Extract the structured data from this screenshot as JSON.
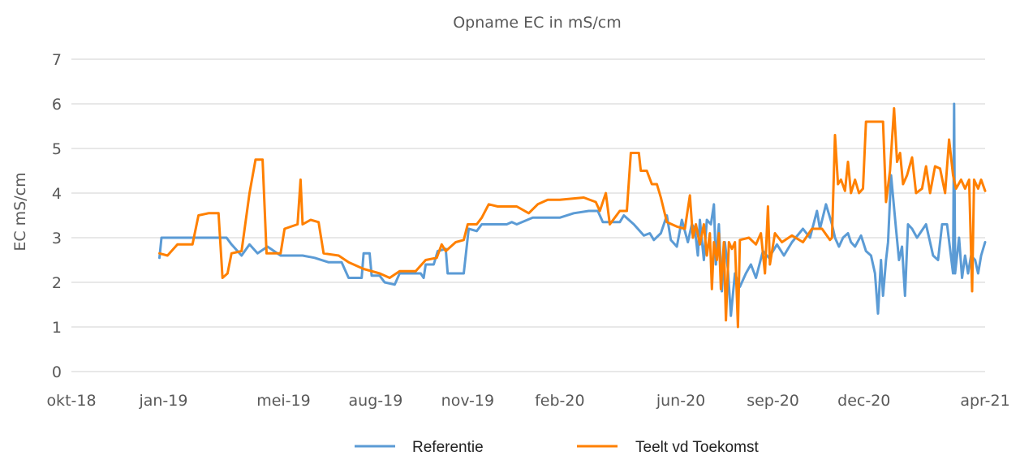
{
  "chart_data": {
    "type": "line",
    "title": "Opname EC in mS/cm",
    "xlabel": "",
    "ylabel": "EC mS/cm",
    "ylim": [
      0,
      7
    ],
    "yticks": [
      0,
      1,
      2,
      3,
      4,
      5,
      6,
      7
    ],
    "xlim": [
      "2018-10-01",
      "2021-04-01"
    ],
    "xticks": [
      {
        "date": "2018-10-01",
        "label": "okt-18"
      },
      {
        "date": "2019-01-01",
        "label": "jan-19"
      },
      {
        "date": "2019-05-01",
        "label": "mei-19"
      },
      {
        "date": "2019-08-01",
        "label": "aug-19"
      },
      {
        "date": "2019-11-01",
        "label": "nov-19"
      },
      {
        "date": "2020-02-01",
        "label": "feb-20"
      },
      {
        "date": "2020-06-01",
        "label": "jun-20"
      },
      {
        "date": "2020-09-01",
        "label": "sep-20"
      },
      {
        "date": "2020-12-01",
        "label": "dec-20"
      },
      {
        "date": "2021-04-01",
        "label": "apr-21"
      }
    ],
    "grid": "horizontal",
    "legend_position": "bottom",
    "series": [
      {
        "name": "Referentie",
        "color": "#5b9bd5",
        "points": [
          [
            "2018-12-28",
            2.55
          ],
          [
            "2018-12-30",
            3.0
          ],
          [
            "2019-02-01",
            3.0
          ],
          [
            "2019-03-05",
            3.0
          ],
          [
            "2019-03-10",
            2.85
          ],
          [
            "2019-03-20",
            2.6
          ],
          [
            "2019-03-28",
            2.85
          ],
          [
            "2019-04-05",
            2.65
          ],
          [
            "2019-04-15",
            2.8
          ],
          [
            "2019-04-28",
            2.6
          ],
          [
            "2019-05-20",
            2.6
          ],
          [
            "2019-06-01",
            2.55
          ],
          [
            "2019-06-15",
            2.45
          ],
          [
            "2019-06-28",
            2.45
          ],
          [
            "2019-07-05",
            2.1
          ],
          [
            "2019-07-18",
            2.1
          ],
          [
            "2019-07-20",
            2.65
          ],
          [
            "2019-07-26",
            2.65
          ],
          [
            "2019-07-28",
            2.15
          ],
          [
            "2019-08-05",
            2.15
          ],
          [
            "2019-08-10",
            2.0
          ],
          [
            "2019-08-20",
            1.95
          ],
          [
            "2019-08-25",
            2.2
          ],
          [
            "2019-09-15",
            2.2
          ],
          [
            "2019-09-18",
            2.1
          ],
          [
            "2019-09-20",
            2.4
          ],
          [
            "2019-09-28",
            2.4
          ],
          [
            "2019-10-02",
            2.7
          ],
          [
            "2019-10-10",
            2.75
          ],
          [
            "2019-10-12",
            2.2
          ],
          [
            "2019-10-28",
            2.2
          ],
          [
            "2019-11-02",
            3.2
          ],
          [
            "2019-11-10",
            3.15
          ],
          [
            "2019-11-15",
            3.3
          ],
          [
            "2019-12-10",
            3.3
          ],
          [
            "2019-12-15",
            3.35
          ],
          [
            "2019-12-20",
            3.3
          ],
          [
            "2020-01-05",
            3.45
          ],
          [
            "2020-02-01",
            3.45
          ],
          [
            "2020-02-15",
            3.55
          ],
          [
            "2020-03-01",
            3.6
          ],
          [
            "2020-03-10",
            3.6
          ],
          [
            "2020-03-15",
            3.35
          ],
          [
            "2020-04-01",
            3.35
          ],
          [
            "2020-04-05",
            3.5
          ],
          [
            "2020-04-15",
            3.3
          ],
          [
            "2020-04-25",
            3.05
          ],
          [
            "2020-05-01",
            3.1
          ],
          [
            "2020-05-05",
            2.95
          ],
          [
            "2020-05-12",
            3.1
          ],
          [
            "2020-05-18",
            3.5
          ],
          [
            "2020-05-22",
            2.95
          ],
          [
            "2020-05-28",
            2.8
          ],
          [
            "2020-06-02",
            3.4
          ],
          [
            "2020-06-08",
            2.9
          ],
          [
            "2020-06-12",
            3.3
          ],
          [
            "2020-06-15",
            3.2
          ],
          [
            "2020-06-18",
            2.6
          ],
          [
            "2020-06-20",
            3.4
          ],
          [
            "2020-06-24",
            2.5
          ],
          [
            "2020-06-27",
            3.4
          ],
          [
            "2020-07-01",
            3.3
          ],
          [
            "2020-07-04",
            3.75
          ],
          [
            "2020-07-06",
            2.4
          ],
          [
            "2020-07-09",
            3.3
          ],
          [
            "2020-07-12",
            1.8
          ],
          [
            "2020-07-15",
            2.9
          ],
          [
            "2020-07-18",
            2.3
          ],
          [
            "2020-07-21",
            1.25
          ],
          [
            "2020-07-25",
            2.2
          ],
          [
            "2020-07-30",
            1.9
          ],
          [
            "2020-08-05",
            2.2
          ],
          [
            "2020-08-10",
            2.4
          ],
          [
            "2020-08-15",
            2.1
          ],
          [
            "2020-08-22",
            2.7
          ],
          [
            "2020-08-28",
            2.55
          ],
          [
            "2020-09-05",
            2.85
          ],
          [
            "2020-09-12",
            2.6
          ],
          [
            "2020-09-20",
            2.9
          ],
          [
            "2020-10-01",
            3.2
          ],
          [
            "2020-10-08",
            3.0
          ],
          [
            "2020-10-15",
            3.6
          ],
          [
            "2020-10-18",
            3.2
          ],
          [
            "2020-10-24",
            3.75
          ],
          [
            "2020-10-30",
            3.3
          ],
          [
            "2020-11-02",
            3.0
          ],
          [
            "2020-11-06",
            2.8
          ],
          [
            "2020-11-10",
            3.0
          ],
          [
            "2020-11-15",
            3.1
          ],
          [
            "2020-11-18",
            2.9
          ],
          [
            "2020-11-22",
            2.8
          ],
          [
            "2020-11-28",
            3.05
          ],
          [
            "2020-12-03",
            2.7
          ],
          [
            "2020-12-08",
            2.6
          ],
          [
            "2020-12-12",
            2.2
          ],
          [
            "2020-12-15",
            1.3
          ],
          [
            "2020-12-18",
            2.5
          ],
          [
            "2020-12-20",
            1.7
          ],
          [
            "2020-12-23",
            2.5
          ],
          [
            "2020-12-25",
            2.9
          ],
          [
            "2020-12-28",
            4.4
          ],
          [
            "2021-01-02",
            3.2
          ],
          [
            "2021-01-05",
            2.5
          ],
          [
            "2021-01-08",
            2.8
          ],
          [
            "2021-01-11",
            1.7
          ],
          [
            "2021-01-14",
            3.3
          ],
          [
            "2021-01-18",
            3.2
          ],
          [
            "2021-01-23",
            3.0
          ],
          [
            "2021-02-01",
            3.3
          ],
          [
            "2021-02-08",
            2.6
          ],
          [
            "2021-02-13",
            2.5
          ],
          [
            "2021-02-17",
            3.3
          ],
          [
            "2021-02-22",
            3.3
          ],
          [
            "2021-02-28",
            2.2
          ],
          [
            "2021-03-01",
            6.0
          ],
          [
            "2021-03-02",
            2.2
          ],
          [
            "2021-03-06",
            3.0
          ],
          [
            "2021-03-09",
            2.1
          ],
          [
            "2021-03-12",
            2.6
          ],
          [
            "2021-03-15",
            2.2
          ],
          [
            "2021-03-18",
            2.6
          ],
          [
            "2021-03-22",
            2.5
          ],
          [
            "2021-03-25",
            2.2
          ],
          [
            "2021-03-28",
            2.6
          ],
          [
            "2021-04-01",
            2.9
          ]
        ]
      },
      {
        "name": "Teelt vd Toekomst",
        "color": "#ff8000",
        "points": [
          [
            "2018-12-28",
            2.65
          ],
          [
            "2019-01-05",
            2.6
          ],
          [
            "2019-01-15",
            2.85
          ],
          [
            "2019-01-30",
            2.85
          ],
          [
            "2019-02-05",
            3.5
          ],
          [
            "2019-02-15",
            3.55
          ],
          [
            "2019-02-25",
            3.55
          ],
          [
            "2019-03-01",
            2.1
          ],
          [
            "2019-03-06",
            2.2
          ],
          [
            "2019-03-10",
            2.65
          ],
          [
            "2019-03-20",
            2.7
          ],
          [
            "2019-03-28",
            4.0
          ],
          [
            "2019-04-03",
            4.75
          ],
          [
            "2019-04-10",
            4.75
          ],
          [
            "2019-04-14",
            2.65
          ],
          [
            "2019-04-28",
            2.65
          ],
          [
            "2019-05-02",
            3.2
          ],
          [
            "2019-05-15",
            3.3
          ],
          [
            "2019-05-18",
            4.3
          ],
          [
            "2019-05-20",
            3.3
          ],
          [
            "2019-05-28",
            3.4
          ],
          [
            "2019-06-05",
            3.35
          ],
          [
            "2019-06-10",
            2.65
          ],
          [
            "2019-06-25",
            2.6
          ],
          [
            "2019-07-05",
            2.45
          ],
          [
            "2019-07-20",
            2.3
          ],
          [
            "2019-08-05",
            2.2
          ],
          [
            "2019-08-15",
            2.1
          ],
          [
            "2019-08-25",
            2.25
          ],
          [
            "2019-09-10",
            2.25
          ],
          [
            "2019-09-20",
            2.5
          ],
          [
            "2019-10-01",
            2.55
          ],
          [
            "2019-10-06",
            2.85
          ],
          [
            "2019-10-10",
            2.7
          ],
          [
            "2019-10-20",
            2.9
          ],
          [
            "2019-10-28",
            2.95
          ],
          [
            "2019-11-01",
            3.3
          ],
          [
            "2019-11-10",
            3.3
          ],
          [
            "2019-11-15",
            3.45
          ],
          [
            "2019-11-22",
            3.75
          ],
          [
            "2019-12-01",
            3.7
          ],
          [
            "2019-12-20",
            3.7
          ],
          [
            "2020-01-01",
            3.55
          ],
          [
            "2020-01-10",
            3.75
          ],
          [
            "2020-01-20",
            3.85
          ],
          [
            "2020-02-01",
            3.85
          ],
          [
            "2020-02-25",
            3.9
          ],
          [
            "2020-03-08",
            3.8
          ],
          [
            "2020-03-12",
            3.6
          ],
          [
            "2020-03-18",
            4.0
          ],
          [
            "2020-03-22",
            3.3
          ],
          [
            "2020-04-01",
            3.6
          ],
          [
            "2020-04-08",
            3.6
          ],
          [
            "2020-04-12",
            4.9
          ],
          [
            "2020-04-20",
            4.9
          ],
          [
            "2020-04-22",
            4.5
          ],
          [
            "2020-04-28",
            4.5
          ],
          [
            "2020-05-03",
            4.2
          ],
          [
            "2020-05-08",
            4.2
          ],
          [
            "2020-05-12",
            3.9
          ],
          [
            "2020-05-18",
            3.35
          ],
          [
            "2020-05-28",
            3.25
          ],
          [
            "2020-06-05",
            3.2
          ],
          [
            "2020-06-10",
            3.95
          ],
          [
            "2020-06-13",
            3.0
          ],
          [
            "2020-06-16",
            3.3
          ],
          [
            "2020-06-20",
            2.85
          ],
          [
            "2020-06-24",
            3.3
          ],
          [
            "2020-06-27",
            2.6
          ],
          [
            "2020-06-30",
            3.1
          ],
          [
            "2020-07-02",
            1.85
          ],
          [
            "2020-07-04",
            2.9
          ],
          [
            "2020-07-07",
            2.5
          ],
          [
            "2020-07-09",
            3.1
          ],
          [
            "2020-07-11",
            1.85
          ],
          [
            "2020-07-14",
            2.9
          ],
          [
            "2020-07-16",
            1.15
          ],
          [
            "2020-07-19",
            2.9
          ],
          [
            "2020-07-22",
            2.75
          ],
          [
            "2020-07-25",
            2.9
          ],
          [
            "2020-07-28",
            1.0
          ],
          [
            "2020-07-30",
            2.95
          ],
          [
            "2020-08-08",
            3.0
          ],
          [
            "2020-08-15",
            2.85
          ],
          [
            "2020-08-20",
            3.1
          ],
          [
            "2020-08-24",
            2.2
          ],
          [
            "2020-08-27",
            3.7
          ],
          [
            "2020-08-29",
            2.4
          ],
          [
            "2020-09-03",
            3.1
          ],
          [
            "2020-09-10",
            2.9
          ],
          [
            "2020-09-20",
            3.05
          ],
          [
            "2020-10-01",
            2.9
          ],
          [
            "2020-10-10",
            3.2
          ],
          [
            "2020-10-20",
            3.2
          ],
          [
            "2020-10-28",
            2.95
          ],
          [
            "2020-10-30",
            3.0
          ],
          [
            "2020-11-02",
            5.3
          ],
          [
            "2020-11-05",
            4.2
          ],
          [
            "2020-11-08",
            4.3
          ],
          [
            "2020-11-12",
            4.05
          ],
          [
            "2020-11-15",
            4.7
          ],
          [
            "2020-11-18",
            4.0
          ],
          [
            "2020-11-22",
            4.3
          ],
          [
            "2020-11-26",
            4.0
          ],
          [
            "2020-11-30",
            4.1
          ],
          [
            "2020-12-03",
            5.6
          ],
          [
            "2020-12-20",
            5.6
          ],
          [
            "2020-12-23",
            3.8
          ],
          [
            "2020-12-27",
            4.5
          ],
          [
            "2020-12-31",
            5.9
          ],
          [
            "2021-01-03",
            4.7
          ],
          [
            "2021-01-06",
            4.9
          ],
          [
            "2021-01-09",
            4.2
          ],
          [
            "2021-01-13",
            4.4
          ],
          [
            "2021-01-18",
            4.8
          ],
          [
            "2021-01-22",
            4.0
          ],
          [
            "2021-01-28",
            4.1
          ],
          [
            "2021-02-01",
            4.6
          ],
          [
            "2021-02-05",
            4.0
          ],
          [
            "2021-02-10",
            4.6
          ],
          [
            "2021-02-15",
            4.55
          ],
          [
            "2021-02-20",
            4.0
          ],
          [
            "2021-02-24",
            5.2
          ],
          [
            "2021-02-28",
            4.4
          ],
          [
            "2021-03-03",
            4.1
          ],
          [
            "2021-03-08",
            4.3
          ],
          [
            "2021-03-12",
            4.1
          ],
          [
            "2021-03-16",
            4.3
          ],
          [
            "2021-03-19",
            1.8
          ],
          [
            "2021-03-21",
            4.3
          ],
          [
            "2021-03-25",
            4.1
          ],
          [
            "2021-03-28",
            4.3
          ],
          [
            "2021-04-01",
            4.05
          ]
        ]
      }
    ]
  }
}
